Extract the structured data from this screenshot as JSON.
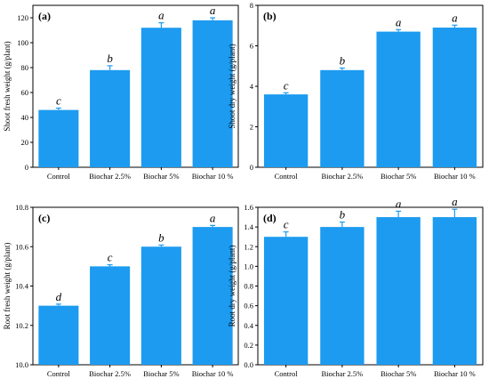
{
  "chart_data": [
    {
      "type": "bar",
      "panel_label": "(a)",
      "categories": [
        "Control",
        "Biochar 2.5%",
        "Biochar 5%",
        "Biochar 10 %"
      ],
      "values": [
        46,
        78,
        112,
        118
      ],
      "errors": [
        1.5,
        3.5,
        4,
        2
      ],
      "significance": [
        "c",
        "b",
        "a",
        "a"
      ],
      "xlabel": "",
      "ylabel": "Shoot fresh weight (g/plant)",
      "ylim": [
        0,
        130
      ],
      "yticks": [
        "0",
        "20",
        "40",
        "60",
        "80",
        "100",
        "120"
      ],
      "yticks_values": [
        0,
        20,
        40,
        60,
        80,
        100,
        120
      ],
      "bar_color": "#1C9BF0",
      "grid": false
    },
    {
      "type": "bar",
      "panel_label": "(b)",
      "categories": [
        "Control",
        "Biochar 2.5%",
        "Biochar 5%",
        "Biochar 10 %"
      ],
      "values": [
        3.6,
        4.8,
        6.7,
        6.9
      ],
      "errors": [
        0.08,
        0.1,
        0.1,
        0.12
      ],
      "significance": [
        "c",
        "b",
        "a",
        "a"
      ],
      "xlabel": "",
      "ylabel": "Shoot dry weight (g/plant)",
      "ylim": [
        0,
        8
      ],
      "yticks": [
        "0",
        "2",
        "4",
        "6",
        "8"
      ],
      "yticks_values": [
        0,
        2,
        4,
        6,
        8
      ],
      "bar_color": "#1C9BF0",
      "grid": false
    },
    {
      "type": "bar",
      "panel_label": "(c)",
      "categories": [
        "Control",
        "Biochar 2.5%",
        "Biochar 5%",
        "Biochar 10 %"
      ],
      "values": [
        10.3,
        10.5,
        10.6,
        10.7
      ],
      "errors": [
        0.008,
        0.008,
        0.008,
        0.008
      ],
      "significance": [
        "d",
        "c",
        "b",
        "a"
      ],
      "xlabel": "",
      "ylabel": "Root fresh weight (g/plant)",
      "ylim": [
        10.0,
        10.8
      ],
      "yticks": [
        "10.0",
        "10.2",
        "10.4",
        "10.6",
        "10.8"
      ],
      "yticks_values": [
        10.0,
        10.2,
        10.4,
        10.6,
        10.8
      ],
      "bar_color": "#1C9BF0",
      "grid": false
    },
    {
      "type": "bar",
      "panel_label": "(d)",
      "categories": [
        "Control",
        "Biochar 2.5%",
        "Biochar 5%",
        "Biochar 10 %"
      ],
      "values": [
        1.3,
        1.4,
        1.5,
        1.5
      ],
      "errors": [
        0.05,
        0.05,
        0.06,
        0.08
      ],
      "significance": [
        "c",
        "b",
        "a",
        "a"
      ],
      "xlabel": "",
      "ylabel": "Root dry weight (g/plant)",
      "ylim": [
        0.0,
        1.6
      ],
      "yticks": [
        "0.0",
        "0.2",
        "0.4",
        "0.6",
        "0.8",
        "1.0",
        "1.2",
        "1.4",
        "1.6"
      ],
      "yticks_values": [
        0.0,
        0.2,
        0.4,
        0.6,
        0.8,
        1.0,
        1.2,
        1.4,
        1.6
      ],
      "bar_color": "#1C9BF0",
      "grid": false
    }
  ]
}
